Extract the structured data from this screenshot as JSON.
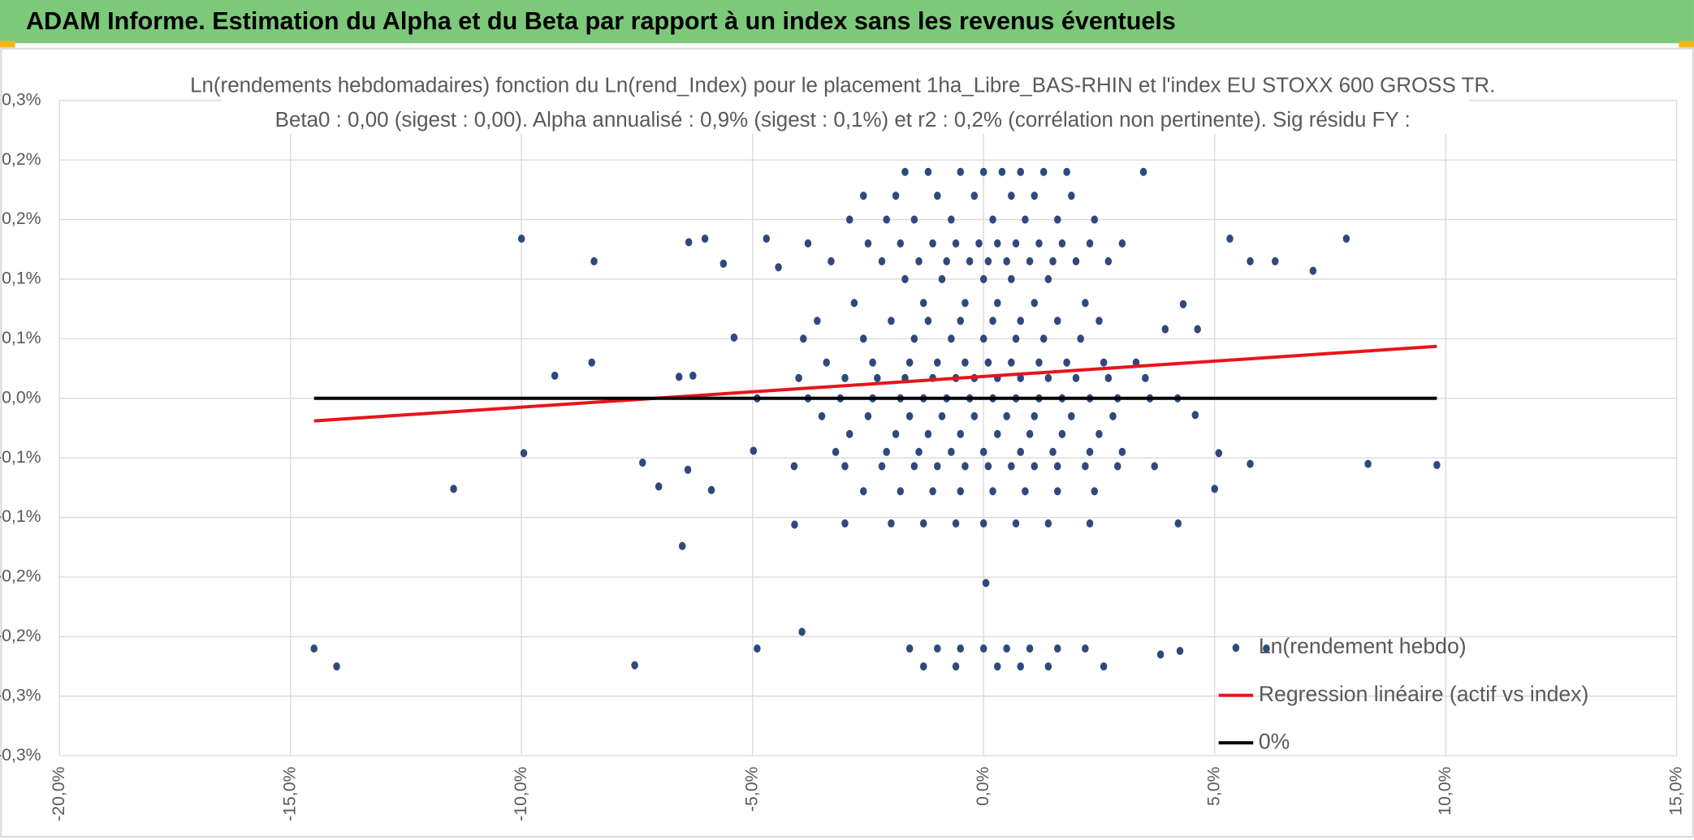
{
  "header": {
    "title": "ADAM Informe. Estimation du Alpha et du Beta par rapport à un index sans les revenus éventuels"
  },
  "chart_data": {
    "type": "scatter",
    "title": "Ln(rendements hebdomadaires) fonction du Ln(rend_Index) pour le placement 1ha_Libre_BAS-RHIN et l'index EU STOXX 600 GROSS TR.",
    "subtitle": "Beta0 : 0,00 (sigest : 0,00). Alpha annualisé : 0,9% (sigest : 0,1%) et r2 : 0,2% (corrélation non pertinente). Sig résidu FY :",
    "xlim": [
      -20,
      15
    ],
    "xticks": [
      {
        "value": -20,
        "label": "-20,0%"
      },
      {
        "value": -15,
        "label": "-15,0%"
      },
      {
        "value": -10,
        "label": "-10,0%"
      },
      {
        "value": -5,
        "label": "-5,0%"
      },
      {
        "value": 0,
        "label": "0,0%"
      },
      {
        "value": 5,
        "label": "5,0%"
      },
      {
        "value": 10,
        "label": "10,0%"
      },
      {
        "value": 15,
        "label": "15,0%"
      }
    ],
    "ylim": [
      -0.3,
      0.25
    ],
    "yticks": [
      {
        "value": 0.25,
        "label": "0,3%"
      },
      {
        "value": 0.2,
        "label": "0,2%"
      },
      {
        "value": 0.15,
        "label": "0,2%"
      },
      {
        "value": 0.1,
        "label": "0,1%"
      },
      {
        "value": 0.05,
        "label": "0,1%"
      },
      {
        "value": 0,
        "label": "0,0%"
      },
      {
        "value": -0.05,
        "label": "-0,1%"
      },
      {
        "value": -0.1,
        "label": "-0,1%"
      },
      {
        "value": -0.15,
        "label": "-0,2%"
      },
      {
        "value": -0.2,
        "label": "-0,2%"
      },
      {
        "value": -0.25,
        "label": "-0,3%"
      },
      {
        "value": -0.3,
        "label": "-0,3%"
      }
    ],
    "grid": true,
    "legend": "bottom-right",
    "series": [
      {
        "name": "Ln(rendement hebdo)",
        "style": "markers",
        "color": "#2e4a7d",
        "x": [
          -10.0,
          -8.43,
          -8.48,
          -9.28,
          -9.95,
          -11.47,
          -14.49,
          -14.0,
          -7.55,
          -6.52,
          -6.59,
          -6.29,
          -5.4,
          -6.38,
          -6.03,
          -5.63,
          -4.7,
          -4.44,
          -7.38,
          -7.03,
          -6.4,
          -5.89,
          -4.9,
          -3.93,
          -4.98,
          -4.09,
          3.46,
          3.93,
          4.63,
          4.32,
          4.21,
          4.25,
          3.83,
          5.33,
          5.77,
          6.31,
          7.13,
          7.85,
          8.32,
          9.81,
          5.77,
          6.12,
          5.0,
          5.09,
          4.58,
          0.05,
          -1.7,
          -1.2,
          -0.5,
          0.0,
          0.4,
          0.8,
          1.3,
          1.8,
          -2.6,
          -1.9,
          -1.0,
          -0.2,
          0.6,
          1.1,
          1.9,
          -2.9,
          -2.1,
          -1.5,
          -0.7,
          0.2,
          0.9,
          1.6,
          2.4,
          -3.8,
          -2.5,
          -1.8,
          -1.1,
          -0.6,
          -0.1,
          0.3,
          0.7,
          1.2,
          1.7,
          2.3,
          3.0,
          -3.3,
          -2.2,
          -1.4,
          -0.8,
          -0.3,
          0.1,
          0.5,
          1.0,
          1.5,
          2.0,
          2.7,
          -1.7,
          -0.9,
          0.0,
          0.6,
          1.4,
          -2.8,
          -1.3,
          -0.4,
          0.3,
          1.1,
          2.2,
          -3.6,
          -2.0,
          -1.2,
          -0.5,
          0.2,
          0.8,
          1.6,
          2.5,
          -3.9,
          -2.6,
          -1.5,
          -0.7,
          0.0,
          0.7,
          1.3,
          2.1,
          -3.4,
          -2.4,
          -1.6,
          -1.0,
          -0.4,
          0.1,
          0.6,
          1.2,
          1.8,
          2.6,
          3.3,
          -4.0,
          -3.0,
          -2.3,
          -1.7,
          -1.1,
          -0.6,
          -0.2,
          0.3,
          0.8,
          1.4,
          2.0,
          2.7,
          3.5,
          -4.9,
          -3.8,
          -3.1,
          -2.4,
          -1.8,
          -1.3,
          -0.8,
          -0.3,
          0.2,
          0.7,
          1.2,
          1.7,
          2.3,
          2.9,
          3.6,
          4.2,
          -3.5,
          -2.5,
          -1.6,
          -0.9,
          -0.2,
          0.5,
          1.1,
          1.9,
          2.8,
          -2.9,
          -1.9,
          -1.2,
          -0.5,
          0.3,
          1.0,
          1.7,
          2.5,
          -3.2,
          -2.1,
          -1.4,
          -0.7,
          0.0,
          0.8,
          1.5,
          2.3,
          3.0,
          -4.1,
          -3.0,
          -2.2,
          -1.5,
          -1.0,
          -0.4,
          0.1,
          0.6,
          1.1,
          1.6,
          2.2,
          2.9,
          3.7,
          -2.6,
          -1.8,
          -1.1,
          -0.5,
          0.2,
          0.9,
          1.6,
          2.4,
          -3.0,
          -2.0,
          -1.3,
          -0.6,
          0.0,
          0.7,
          1.4,
          2.3,
          -1.6,
          -1.0,
          -0.5,
          0.0,
          0.5,
          1.0,
          1.6,
          2.2,
          -1.3,
          -0.6,
          0.3,
          0.8,
          1.4,
          2.6
        ],
        "values": [
          0.134,
          0.115,
          0.03,
          0.019,
          -0.046,
          -0.076,
          -0.21,
          -0.225,
          -0.224,
          -0.124,
          0.018,
          0.019,
          0.051,
          0.131,
          0.134,
          0.113,
          0.134,
          0.11,
          -0.054,
          -0.074,
          -0.06,
          -0.077,
          -0.21,
          -0.196,
          -0.044,
          -0.106,
          0.19,
          0.058,
          0.058,
          0.079,
          -0.105,
          -0.212,
          -0.215,
          0.134,
          0.115,
          0.115,
          0.107,
          0.134,
          -0.055,
          -0.056,
          -0.055,
          -0.21,
          -0.076,
          -0.046,
          -0.014,
          -0.155,
          0.19,
          0.19,
          0.19,
          0.19,
          0.19,
          0.19,
          0.19,
          0.19,
          0.17,
          0.17,
          0.17,
          0.17,
          0.17,
          0.17,
          0.17,
          0.15,
          0.15,
          0.15,
          0.15,
          0.15,
          0.15,
          0.15,
          0.15,
          0.13,
          0.13,
          0.13,
          0.13,
          0.13,
          0.13,
          0.13,
          0.13,
          0.13,
          0.13,
          0.13,
          0.13,
          0.115,
          0.115,
          0.115,
          0.115,
          0.115,
          0.115,
          0.115,
          0.115,
          0.115,
          0.115,
          0.115,
          0.1,
          0.1,
          0.1,
          0.1,
          0.1,
          0.08,
          0.08,
          0.08,
          0.08,
          0.08,
          0.08,
          0.065,
          0.065,
          0.065,
          0.065,
          0.065,
          0.065,
          0.065,
          0.065,
          0.05,
          0.05,
          0.05,
          0.05,
          0.05,
          0.05,
          0.05,
          0.05,
          0.03,
          0.03,
          0.03,
          0.03,
          0.03,
          0.03,
          0.03,
          0.03,
          0.03,
          0.03,
          0.03,
          0.017,
          0.017,
          0.017,
          0.017,
          0.017,
          0.017,
          0.017,
          0.017,
          0.017,
          0.017,
          0.017,
          0.017,
          0.017,
          0,
          0,
          0,
          0,
          0,
          0,
          0,
          0,
          0,
          0,
          0,
          0,
          0,
          0,
          0,
          0,
          -0.015,
          -0.015,
          -0.015,
          -0.015,
          -0.015,
          -0.015,
          -0.015,
          -0.015,
          -0.015,
          -0.03,
          -0.03,
          -0.03,
          -0.03,
          -0.03,
          -0.03,
          -0.03,
          -0.03,
          -0.045,
          -0.045,
          -0.045,
          -0.045,
          -0.045,
          -0.045,
          -0.045,
          -0.045,
          -0.045,
          -0.057,
          -0.057,
          -0.057,
          -0.057,
          -0.057,
          -0.057,
          -0.057,
          -0.057,
          -0.057,
          -0.057,
          -0.057,
          -0.057,
          -0.057,
          -0.078,
          -0.078,
          -0.078,
          -0.078,
          -0.078,
          -0.078,
          -0.078,
          -0.078,
          -0.105,
          -0.105,
          -0.105,
          -0.105,
          -0.105,
          -0.105,
          -0.105,
          -0.105,
          -0.21,
          -0.21,
          -0.21,
          -0.21,
          -0.21,
          -0.21,
          -0.21,
          -0.21,
          -0.225,
          -0.225,
          -0.225,
          -0.225,
          -0.225,
          -0.225
        ]
      },
      {
        "name": "Regression linéaire (actif vs index)",
        "style": "line",
        "color": "#e8141b",
        "x": [
          -14.49,
          9.81
        ],
        "values": [
          -0.019,
          0.0436
        ]
      },
      {
        "name": "0%",
        "style": "line",
        "color": "#000000",
        "x": [
          -14.49,
          9.81
        ],
        "values": [
          0,
          0
        ]
      }
    ]
  }
}
